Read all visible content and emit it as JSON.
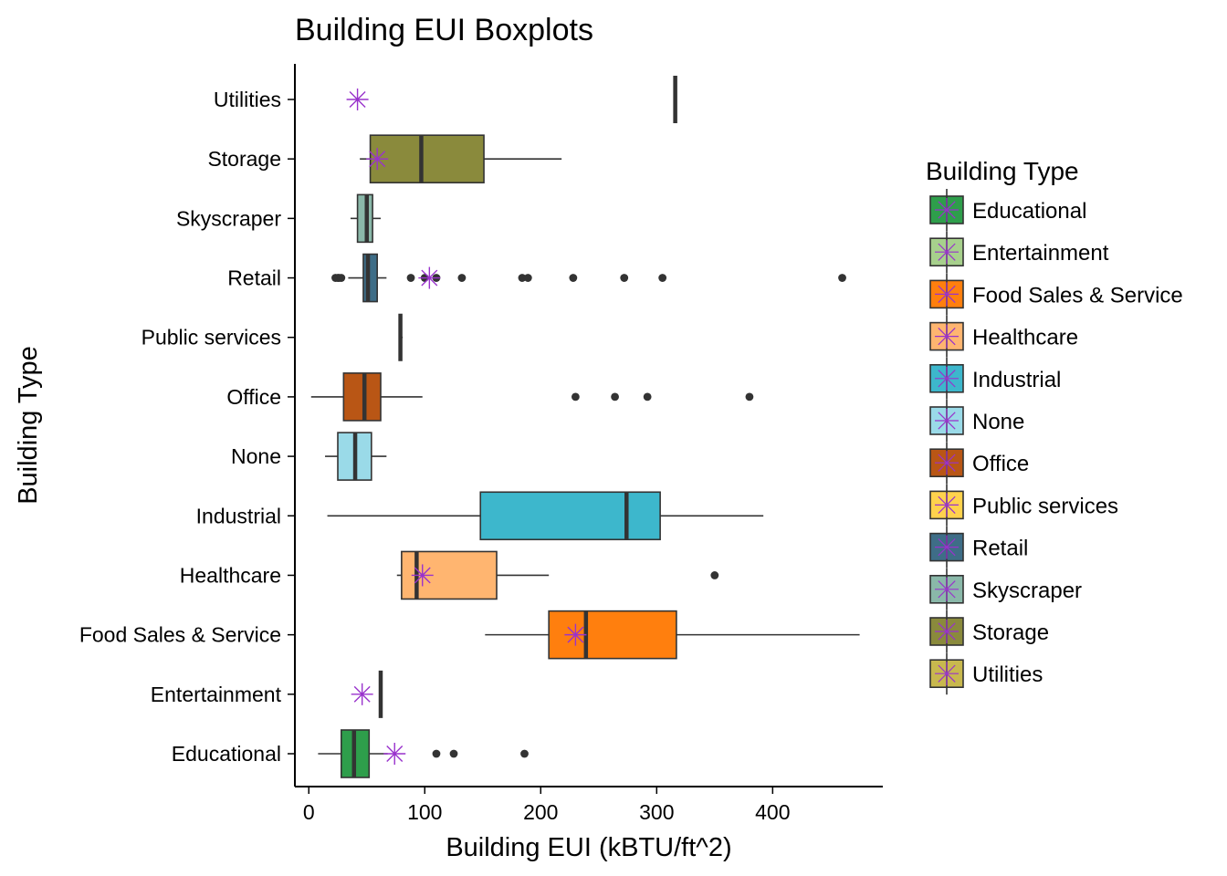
{
  "chart_data": {
    "type": "boxplot",
    "title": "Building EUI Boxplots",
    "xlabel": "Building EUI (kBTU/ft^2)",
    "ylabel": "Building Type",
    "xlim": [
      -12,
      495
    ],
    "xticks": [
      0,
      100,
      200,
      300,
      400
    ],
    "legend": {
      "title": "Building Type",
      "position": "right"
    },
    "mean_marker_color": "#9932CC",
    "categories": [
      "Educational",
      "Entertainment",
      "Food Sales & Service",
      "Healthcare",
      "Industrial",
      "None",
      "Office",
      "Public services",
      "Retail",
      "Skyscraper",
      "Storage",
      "Utilities"
    ],
    "series": [
      {
        "name": "Educational",
        "color": "#2E9E4B",
        "min": 8,
        "q1": 28,
        "median": 39,
        "q3": 52,
        "max": 68,
        "mean": 74,
        "outliers": [
          110,
          125,
          186
        ]
      },
      {
        "name": "Entertainment",
        "color": "#A7D08C",
        "min": 62,
        "q1": 62,
        "median": 62,
        "q3": 62,
        "max": 62,
        "mean": 46,
        "outliers": []
      },
      {
        "name": "Food Sales & Service",
        "color": "#FF7F0E",
        "min": 152,
        "q1": 207,
        "median": 239,
        "q3": 317,
        "max": 475,
        "mean": 230,
        "outliers": []
      },
      {
        "name": "Healthcare",
        "color": "#FFB570",
        "min": 76,
        "q1": 80,
        "median": 93,
        "q3": 162,
        "max": 207,
        "mean": 98,
        "outliers": [
          350
        ]
      },
      {
        "name": "Industrial",
        "color": "#3DB7CC",
        "min": 16,
        "q1": 148,
        "median": 274,
        "q3": 303,
        "max": 392,
        "mean": null,
        "outliers": []
      },
      {
        "name": "None",
        "color": "#9ADAE8",
        "min": 14,
        "q1": 25,
        "median": 40,
        "q3": 54,
        "max": 67,
        "mean": null,
        "outliers": []
      },
      {
        "name": "Office",
        "color": "#B95615",
        "min": 2,
        "q1": 30,
        "median": 48,
        "q3": 62,
        "max": 98,
        "mean": null,
        "outliers": [
          230,
          264,
          292,
          380
        ]
      },
      {
        "name": "Public services",
        "color": "#FFD24D",
        "min": 79,
        "q1": 79,
        "median": 79,
        "q3": 79,
        "max": 81,
        "mean": null,
        "outliers": []
      },
      {
        "name": "Retail",
        "color": "#3E6D87",
        "min": 34,
        "q1": 47,
        "median": 51,
        "q3": 59,
        "max": 67,
        "mean": 104,
        "outliers": [
          23,
          25,
          26,
          28,
          88,
          100,
          110,
          132,
          184,
          189,
          228,
          272,
          305,
          460
        ]
      },
      {
        "name": "Skyscraper",
        "color": "#8AB8A9",
        "min": 36,
        "q1": 42,
        "median": 50,
        "q3": 55,
        "max": 62,
        "mean": null,
        "outliers": []
      },
      {
        "name": "Storage",
        "color": "#8A8A3C",
        "min": 44,
        "q1": 53,
        "median": 97,
        "q3": 151,
        "max": 218,
        "mean": 59,
        "outliers": []
      },
      {
        "name": "Utilities",
        "color": "#C8B84E",
        "min": 316,
        "q1": 316,
        "median": 316,
        "q3": 316,
        "max": 316,
        "mean": 42,
        "outliers": []
      }
    ]
  }
}
